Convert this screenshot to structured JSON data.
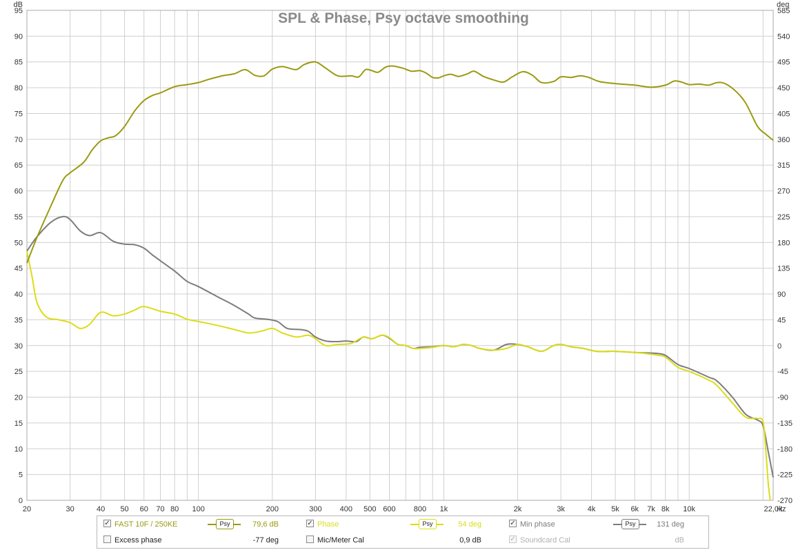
{
  "chart_data": {
    "type": "line",
    "title": "SPL & Phase, Psy octave smoothing",
    "x_scale": "log",
    "xlim": [
      20,
      22000
    ],
    "x_ticks": [
      {
        "v": 20,
        "label": "20"
      },
      {
        "v": 30,
        "label": "30"
      },
      {
        "v": 40,
        "label": "40"
      },
      {
        "v": 50,
        "label": "50"
      },
      {
        "v": 60,
        "label": "60"
      },
      {
        "v": 70,
        "label": "70"
      },
      {
        "v": 80,
        "label": "80"
      },
      {
        "v": 100,
        "label": "100"
      },
      {
        "v": 200,
        "label": "200"
      },
      {
        "v": 300,
        "label": "300"
      },
      {
        "v": 400,
        "label": "400"
      },
      {
        "v": 500,
        "label": "500"
      },
      {
        "v": 600,
        "label": "600"
      },
      {
        "v": 800,
        "label": "800"
      },
      {
        "v": 1000,
        "label": "1k"
      },
      {
        "v": 2000,
        "label": "2k"
      },
      {
        "v": 3000,
        "label": "3k"
      },
      {
        "v": 4000,
        "label": "4k"
      },
      {
        "v": 5000,
        "label": "5k"
      },
      {
        "v": 6000,
        "label": "6k"
      },
      {
        "v": 7000,
        "label": "7k"
      },
      {
        "v": 8000,
        "label": "8k"
      },
      {
        "v": 10000,
        "label": "10k"
      },
      {
        "v": 22000,
        "label": "22,0k"
      }
    ],
    "x_unit": "Hz",
    "left_axis": {
      "unit": "dB",
      "lim": [
        0,
        95
      ],
      "ticks": [
        0,
        5,
        10,
        15,
        20,
        25,
        30,
        35,
        40,
        45,
        50,
        55,
        60,
        65,
        70,
        75,
        80,
        85,
        90,
        95
      ]
    },
    "right_axis": {
      "unit": "deg",
      "lim": [
        -270,
        585
      ],
      "ticks": [
        -270,
        -225,
        -180,
        -135,
        -90,
        -45,
        0,
        45,
        90,
        135,
        180,
        225,
        270,
        315,
        360,
        405,
        450,
        495,
        540,
        585
      ]
    },
    "grid": true,
    "series": [
      {
        "name": "FAST 10F / 250KE",
        "axis": "left",
        "color": "#9a9a10",
        "points": [
          [
            20,
            46
          ],
          [
            22,
            51
          ],
          [
            25,
            57
          ],
          [
            28,
            62
          ],
          [
            30,
            63.5
          ],
          [
            34,
            65.5
          ],
          [
            37,
            68
          ],
          [
            40,
            69.7
          ],
          [
            43,
            70.3
          ],
          [
            46,
            70.7
          ],
          [
            50,
            72.5
          ],
          [
            55,
            75.5
          ],
          [
            60,
            77.5
          ],
          [
            65,
            78.5
          ],
          [
            70,
            79
          ],
          [
            80,
            80.2
          ],
          [
            90,
            80.6
          ],
          [
            100,
            81
          ],
          [
            110,
            81.6
          ],
          [
            125,
            82.3
          ],
          [
            140,
            82.7
          ],
          [
            155,
            83.5
          ],
          [
            170,
            82.4
          ],
          [
            185,
            82.3
          ],
          [
            200,
            83.6
          ],
          [
            220,
            84.1
          ],
          [
            250,
            83.5
          ],
          [
            270,
            84.5
          ],
          [
            300,
            85
          ],
          [
            330,
            83.8
          ],
          [
            370,
            82.3
          ],
          [
            420,
            82.3
          ],
          [
            450,
            82.1
          ],
          [
            480,
            83.5
          ],
          [
            510,
            83.3
          ],
          [
            540,
            83
          ],
          [
            580,
            84
          ],
          [
            620,
            84.2
          ],
          [
            680,
            83.8
          ],
          [
            740,
            83.2
          ],
          [
            800,
            83.3
          ],
          [
            850,
            82.8
          ],
          [
            900,
            82
          ],
          [
            950,
            81.9
          ],
          [
            1000,
            82.3
          ],
          [
            1070,
            82.6
          ],
          [
            1150,
            82.2
          ],
          [
            1250,
            82.7
          ],
          [
            1330,
            83.2
          ],
          [
            1450,
            82.2
          ],
          [
            1600,
            81.5
          ],
          [
            1750,
            81.1
          ],
          [
            1900,
            82.1
          ],
          [
            2100,
            83.1
          ],
          [
            2300,
            82.4
          ],
          [
            2500,
            81
          ],
          [
            2800,
            81.2
          ],
          [
            3000,
            82.1
          ],
          [
            3300,
            82
          ],
          [
            3600,
            82.3
          ],
          [
            3900,
            82
          ],
          [
            4300,
            81.2
          ],
          [
            5000,
            80.8
          ],
          [
            6000,
            80.5
          ],
          [
            7000,
            80.1
          ],
          [
            8000,
            80.5
          ],
          [
            8700,
            81.3
          ],
          [
            9300,
            81.1
          ],
          [
            10000,
            80.6
          ],
          [
            11000,
            80.7
          ],
          [
            12000,
            80.5
          ],
          [
            13000,
            81
          ],
          [
            14000,
            80.8
          ],
          [
            15500,
            79.3
          ],
          [
            17000,
            77
          ],
          [
            19000,
            72.5
          ],
          [
            20500,
            71
          ],
          [
            22000,
            69.8
          ]
        ]
      },
      {
        "name": "Phase",
        "axis": "right",
        "color": "#dcdc18",
        "points": [
          [
            20,
            165
          ],
          [
            21,
            120
          ],
          [
            22,
            75
          ],
          [
            24,
            50
          ],
          [
            27,
            45
          ],
          [
            30,
            40
          ],
          [
            33,
            30
          ],
          [
            36,
            37
          ],
          [
            40,
            58
          ],
          [
            45,
            52
          ],
          [
            50,
            55
          ],
          [
            55,
            62
          ],
          [
            60,
            68
          ],
          [
            70,
            60
          ],
          [
            80,
            55
          ],
          [
            90,
            46
          ],
          [
            100,
            42
          ],
          [
            120,
            35
          ],
          [
            140,
            28
          ],
          [
            160,
            22
          ],
          [
            180,
            25
          ],
          [
            200,
            30
          ],
          [
            220,
            22
          ],
          [
            250,
            15
          ],
          [
            280,
            18
          ],
          [
            300,
            12
          ],
          [
            330,
            0
          ],
          [
            370,
            2
          ],
          [
            420,
            4
          ],
          [
            470,
            15
          ],
          [
            510,
            12
          ],
          [
            560,
            18
          ],
          [
            600,
            14
          ],
          [
            650,
            2
          ],
          [
            700,
            0
          ],
          [
            750,
            -5
          ],
          [
            800,
            -5
          ],
          [
            900,
            -3
          ],
          [
            1000,
            0
          ],
          [
            1100,
            -2
          ],
          [
            1200,
            2
          ],
          [
            1300,
            0
          ],
          [
            1400,
            -5
          ],
          [
            1600,
            -8
          ],
          [
            1800,
            -5
          ],
          [
            2000,
            2
          ],
          [
            2200,
            -2
          ],
          [
            2500,
            -10
          ],
          [
            2800,
            0
          ],
          [
            3000,
            2
          ],
          [
            3300,
            -2
          ],
          [
            3700,
            -5
          ],
          [
            4200,
            -10
          ],
          [
            5000,
            -10
          ],
          [
            6000,
            -12
          ],
          [
            7000,
            -15
          ],
          [
            7500,
            -17
          ],
          [
            8000,
            -20
          ],
          [
            9000,
            -38
          ],
          [
            10000,
            -45
          ],
          [
            12000,
            -60
          ],
          [
            13000,
            -70
          ],
          [
            15000,
            -100
          ],
          [
            17000,
            -125
          ],
          [
            19000,
            -127
          ],
          [
            20000,
            -133
          ],
          [
            20500,
            -180
          ],
          [
            21000,
            -240
          ],
          [
            21400,
            -270
          ]
        ]
      },
      {
        "name": "Min phase",
        "axis": "right",
        "color": "#7c7c7c",
        "points": [
          [
            20,
            165
          ],
          [
            22,
            190
          ],
          [
            25,
            215
          ],
          [
            28,
            225
          ],
          [
            30,
            220
          ],
          [
            33,
            200
          ],
          [
            36,
            192
          ],
          [
            40,
            197
          ],
          [
            45,
            182
          ],
          [
            50,
            177
          ],
          [
            55,
            176
          ],
          [
            60,
            170
          ],
          [
            65,
            158
          ],
          [
            70,
            148
          ],
          [
            80,
            130
          ],
          [
            90,
            112
          ],
          [
            100,
            103
          ],
          [
            120,
            85
          ],
          [
            140,
            70
          ],
          [
            160,
            55
          ],
          [
            170,
            48
          ],
          [
            190,
            46
          ],
          [
            210,
            42
          ],
          [
            230,
            30
          ],
          [
            260,
            28
          ],
          [
            280,
            25
          ],
          [
            300,
            15
          ],
          [
            330,
            8
          ],
          [
            370,
            7
          ],
          [
            400,
            8
          ],
          [
            440,
            7
          ],
          [
            470,
            15
          ],
          [
            510,
            12
          ],
          [
            560,
            18
          ],
          [
            600,
            13
          ],
          [
            650,
            2
          ],
          [
            700,
            0
          ],
          [
            750,
            -5
          ],
          [
            800,
            -3
          ],
          [
            900,
            -2
          ],
          [
            1000,
            0
          ],
          [
            1100,
            -2
          ],
          [
            1200,
            2
          ],
          [
            1300,
            0
          ],
          [
            1400,
            -5
          ],
          [
            1600,
            -8
          ],
          [
            1800,
            2
          ],
          [
            2000,
            2
          ],
          [
            2200,
            -2
          ],
          [
            2500,
            -10
          ],
          [
            2800,
            0
          ],
          [
            3000,
            2
          ],
          [
            3300,
            -2
          ],
          [
            3700,
            -5
          ],
          [
            4200,
            -10
          ],
          [
            5000,
            -10
          ],
          [
            6000,
            -12
          ],
          [
            7000,
            -13
          ],
          [
            7500,
            -14
          ],
          [
            8000,
            -17
          ],
          [
            9000,
            -33
          ],
          [
            10000,
            -40
          ],
          [
            12000,
            -55
          ],
          [
            13000,
            -62
          ],
          [
            15000,
            -90
          ],
          [
            17000,
            -120
          ],
          [
            19000,
            -130
          ],
          [
            20000,
            -140
          ],
          [
            21000,
            -185
          ],
          [
            22000,
            -230
          ]
        ]
      }
    ]
  },
  "legend": {
    "row1": {
      "item1": {
        "label": "FAST 10F / 250KE",
        "checked": "✓",
        "smoothing": "Psy",
        "value": "79,6 dB",
        "color": "#9a9a10"
      },
      "item2": {
        "label": "Phase",
        "checked": "✓",
        "smoothing": "Psy",
        "value": "54 deg",
        "color": "#dcdc18"
      },
      "item3": {
        "label": "Min phase",
        "checked": "✓",
        "smoothing": "Psy",
        "value": "131 deg",
        "color": "#7c7c7c"
      }
    },
    "row2": {
      "item1": {
        "label": "Excess phase",
        "checked": "",
        "value": "-77 deg"
      },
      "item2": {
        "label": "Mic/Meter Cal",
        "checked": "",
        "value": "0,9 dB"
      },
      "item3": {
        "label": "Soundcard Cal",
        "checked": "✓",
        "value": "dB"
      }
    }
  }
}
